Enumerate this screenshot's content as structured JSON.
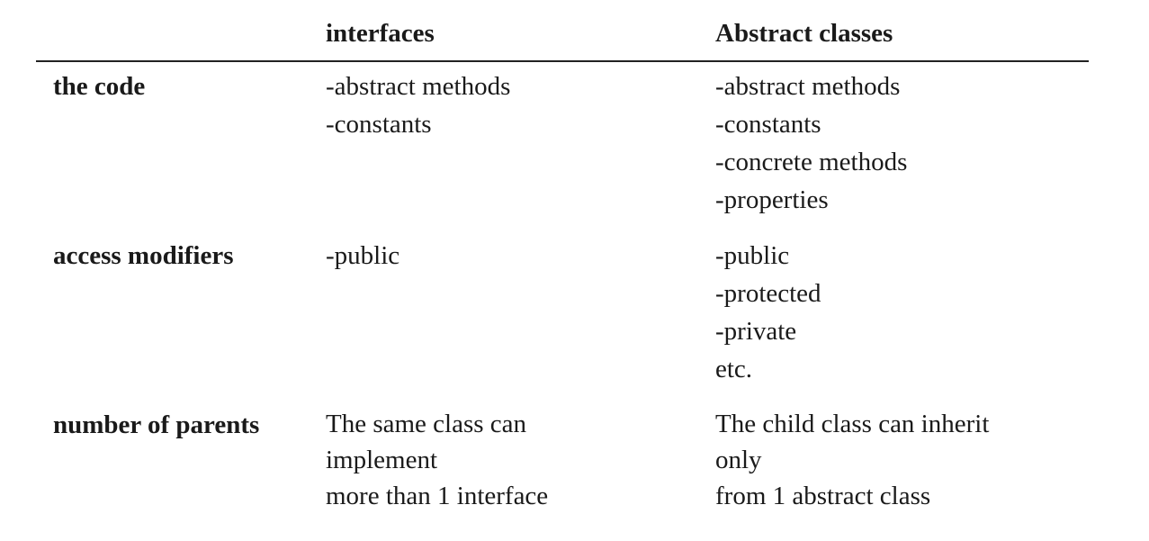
{
  "table": {
    "headers": [
      "",
      "interfaces",
      "Abstract classes"
    ],
    "rows": [
      {
        "label": "the code",
        "interfaces": [
          "-abstract methods",
          "-constants"
        ],
        "abstract_classes": [
          "-abstract methods",
          "-constants",
          "-concrete methods",
          "-properties"
        ]
      },
      {
        "label": "access modifiers",
        "interfaces": [
          "-public"
        ],
        "abstract_classes": [
          "-public",
          "-protected",
          "-private",
          "etc."
        ]
      },
      {
        "label": "number of parents",
        "interfaces": [
          "The same class can",
          "implement",
          "more than 1 interface"
        ],
        "abstract_classes": [
          "The child class can inherit",
          "only",
          "from 1 abstract class"
        ]
      }
    ]
  }
}
